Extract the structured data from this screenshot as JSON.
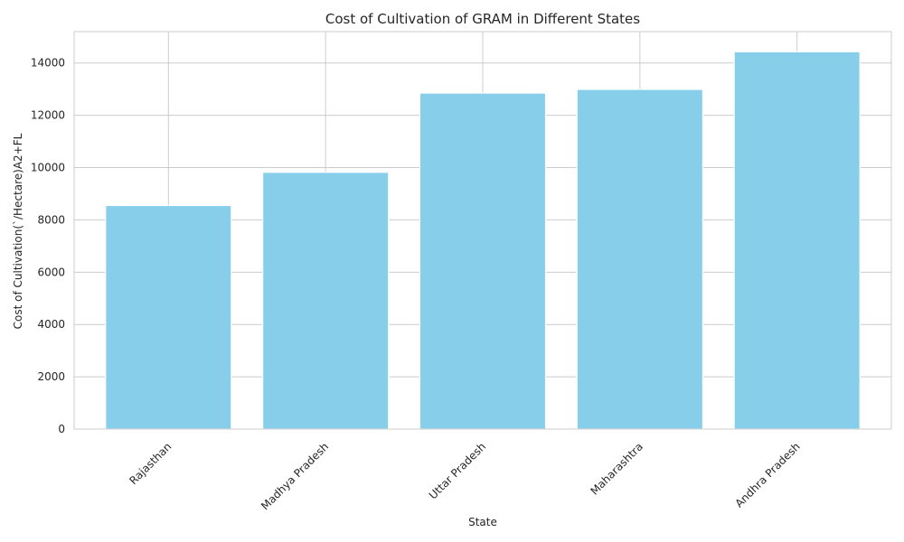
{
  "chart_data": {
    "type": "bar",
    "title": "Cost of Cultivation of GRAM in Different States",
    "xlabel": "State",
    "ylabel": "Cost of Cultivation(`/Hectare)A2+FL",
    "categories": [
      "Rajasthan",
      "Madhya Pradesh",
      "Uttar Pradesh",
      "Maharashtra",
      "Andhra Pradesh"
    ],
    "values": [
      8550,
      9820,
      12850,
      12990,
      14430
    ],
    "ylim": [
      0,
      15200
    ],
    "yticks": [
      0,
      2000,
      4000,
      6000,
      8000,
      10000,
      12000,
      14000
    ],
    "bar_color": "#87ceeb",
    "grid": true,
    "x_tick_rotation": 45
  }
}
